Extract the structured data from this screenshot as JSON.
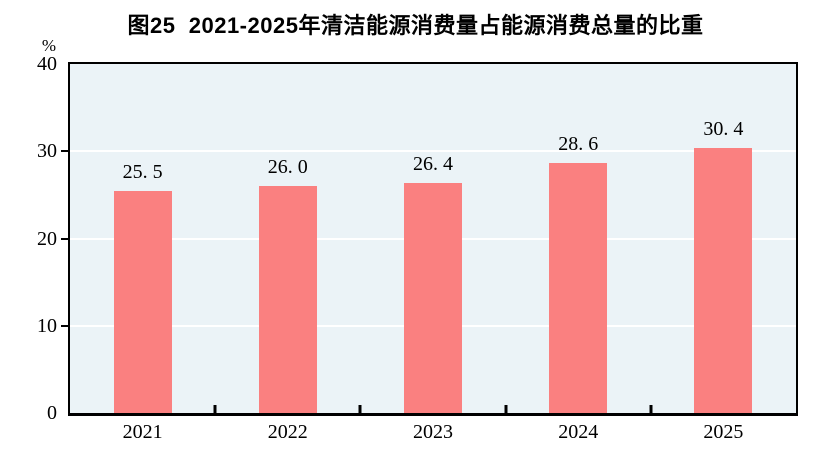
{
  "title": "图25  2021-2025年清洁能源消费量占能源消费总量的比重",
  "unit_label": "%",
  "chart_data": {
    "type": "bar",
    "title": "图25  2021-2025年清洁能源消费量占能源消费总量的比重",
    "categories": [
      "2021",
      "2022",
      "2023",
      "2024",
      "2025"
    ],
    "values": [
      25.5,
      26.0,
      26.4,
      28.6,
      30.4
    ],
    "value_labels": [
      "25. 5",
      "26. 0",
      "26. 4",
      "28. 6",
      "30. 4"
    ],
    "xlabel": "",
    "ylabel": "%",
    "ylim": [
      0,
      40
    ],
    "yticks": [
      0,
      10,
      20,
      30,
      40
    ],
    "ytick_labels": [
      "0",
      "10",
      "20",
      "30",
      "40"
    ],
    "grid": "horizontal white lines at 10, 20, 30",
    "legend": "none",
    "bar_color": "#FA8080",
    "plot_background": "#EBF3F7",
    "gridline_color": "#FFFFFF",
    "axis_color": "#000000",
    "page_background": "#FFFFFF"
  }
}
